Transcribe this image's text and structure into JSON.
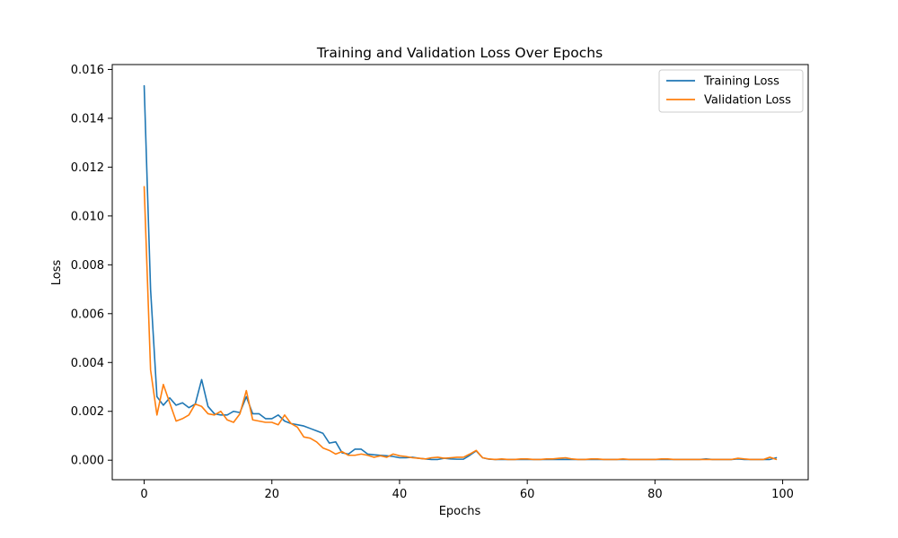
{
  "chart_data": {
    "type": "line",
    "title": "Training and Validation Loss Over Epochs",
    "xlabel": "Epochs",
    "ylabel": "Loss",
    "xlim": [
      -5,
      104
    ],
    "ylim": [
      -0.0008,
      0.0162
    ],
    "xticks": [
      0,
      20,
      40,
      60,
      80,
      100
    ],
    "yticks": [
      0.0,
      0.002,
      0.004,
      0.006,
      0.008,
      0.01,
      0.012,
      0.014,
      0.016
    ],
    "ytick_labels": [
      "0.000",
      "0.002",
      "0.004",
      "0.006",
      "0.008",
      "0.010",
      "0.012",
      "0.014",
      "0.016"
    ],
    "grid": false,
    "legend_position": "top-right",
    "series": [
      {
        "name": "Training Loss",
        "color": "#1f77b4",
        "values": [
          0.01533,
          0.007,
          0.0026,
          0.00225,
          0.00255,
          0.00225,
          0.00235,
          0.00215,
          0.0023,
          0.0033,
          0.0022,
          0.0019,
          0.00185,
          0.00185,
          0.002,
          0.00195,
          0.0026,
          0.0019,
          0.0019,
          0.0017,
          0.0017,
          0.00185,
          0.0016,
          0.0015,
          0.00145,
          0.0014,
          0.0013,
          0.0012,
          0.0011,
          0.0007,
          0.00075,
          0.0003,
          0.00025,
          0.00045,
          0.00045,
          0.00025,
          0.00022,
          0.0002,
          0.00018,
          0.00015,
          0.0001,
          0.0001,
          0.00012,
          8e-05,
          5e-05,
          3e-05,
          3e-05,
          8e-05,
          5e-05,
          4e-05,
          4e-05,
          0.0002,
          0.00038,
          0.0001,
          4e-05,
          3e-05,
          3e-05,
          3e-05,
          3e-05,
          3e-05,
          3e-05,
          3e-05,
          3e-05,
          3e-05,
          3e-05,
          3e-05,
          3e-05,
          3e-05,
          3e-05,
          3e-05,
          3e-05,
          3e-05,
          3e-05,
          3e-05,
          3e-05,
          3e-05,
          3e-05,
          3e-05,
          3e-05,
          3e-05,
          3e-05,
          3e-05,
          3e-05,
          3e-05,
          3e-05,
          3e-05,
          3e-05,
          3e-05,
          5e-05,
          3e-05,
          3e-05,
          3e-05,
          3e-05,
          5e-05,
          3e-05,
          3e-05,
          3e-05,
          3e-05,
          3e-05,
          0.0001
        ]
      },
      {
        "name": "Validation Loss",
        "color": "#ff7f0e",
        "values": [
          0.0112,
          0.0037,
          0.00185,
          0.0031,
          0.00235,
          0.0016,
          0.0017,
          0.00185,
          0.0023,
          0.0022,
          0.0019,
          0.00185,
          0.002,
          0.00165,
          0.00155,
          0.0019,
          0.00285,
          0.00165,
          0.0016,
          0.00155,
          0.00155,
          0.00145,
          0.00185,
          0.0015,
          0.00135,
          0.00095,
          0.0009,
          0.00075,
          0.0005,
          0.0004,
          0.00025,
          0.00035,
          0.0002,
          0.0002,
          0.00025,
          0.0002,
          0.00012,
          0.00018,
          0.00012,
          0.00025,
          0.00018,
          0.00015,
          0.0001,
          8e-05,
          5e-05,
          0.0001,
          0.00012,
          8e-05,
          0.0001,
          0.00012,
          0.00012,
          0.00025,
          0.0004,
          0.0001,
          5e-05,
          3e-05,
          5e-05,
          3e-05,
          3e-05,
          5e-05,
          5e-05,
          3e-05,
          3e-05,
          5e-05,
          5e-05,
          8e-05,
          0.0001,
          5e-05,
          3e-05,
          3e-05,
          5e-05,
          5e-05,
          3e-05,
          3e-05,
          3e-05,
          5e-05,
          3e-05,
          3e-05,
          3e-05,
          3e-05,
          3e-05,
          5e-05,
          5e-05,
          3e-05,
          3e-05,
          3e-05,
          3e-05,
          3e-05,
          3e-05,
          3e-05,
          3e-05,
          3e-05,
          3e-05,
          8e-05,
          5e-05,
          3e-05,
          3e-05,
          3e-05,
          0.00012,
          3e-05
        ]
      }
    ]
  }
}
